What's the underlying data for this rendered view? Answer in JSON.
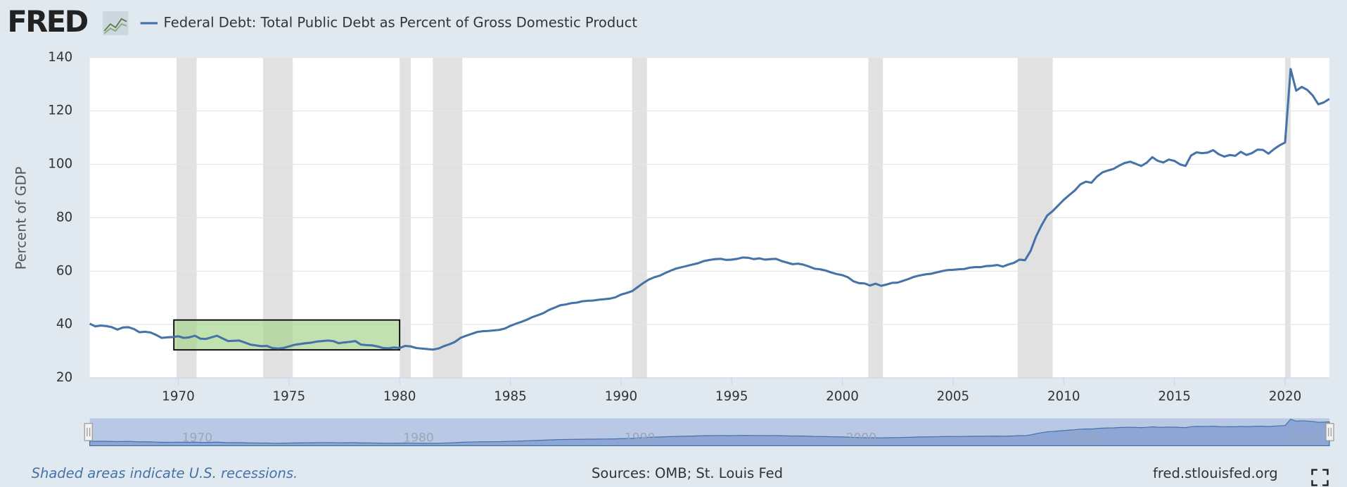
{
  "chart_data": {
    "type": "line",
    "logo": "FRED",
    "title": "Federal Debt: Total Public Debt as Percent of Gross Domestic Product",
    "y_label": "Percent of GDP",
    "note": "Shaded areas indicate U.S. recessions.",
    "source": "Sources: OMB; St. Louis Fed",
    "site": "fred.stlouisfed.org",
    "xlim": [
      1966,
      2022
    ],
    "xticks": [
      1970,
      1975,
      1980,
      1985,
      1990,
      1995,
      2000,
      2005,
      2010,
      2015,
      2020
    ],
    "ylim": [
      20,
      140
    ],
    "yticks": [
      20,
      40,
      60,
      80,
      100,
      120,
      140
    ],
    "grid": true,
    "recession_color": "#e1e1e1",
    "recessions": [
      [
        1969.92,
        1970.83
      ],
      [
        1973.83,
        1975.17
      ],
      [
        1980.0,
        1980.5
      ],
      [
        1981.5,
        1982.83
      ],
      [
        1990.5,
        1991.17
      ],
      [
        2001.17,
        2001.83
      ],
      [
        2007.92,
        2009.5
      ],
      [
        2020.0,
        2020.25
      ]
    ],
    "highlight": {
      "x": [
        1969.8,
        1980.0
      ],
      "y": [
        30.5,
        41.7
      ],
      "color": "#a8d48e"
    },
    "navigator_ticks": [
      1970,
      1980,
      1990,
      2000,
      2010,
      2020
    ],
    "series": [
      {
        "name": "Federal Debt: Total Public Debt as Percent of Gross Domestic Product",
        "color": "#4572a7",
        "x": [
          1966,
          1966.25,
          1966.5,
          1966.75,
          1967,
          1967.25,
          1967.5,
          1967.75,
          1968,
          1968.25,
          1968.5,
          1968.75,
          1969,
          1969.25,
          1969.5,
          1969.75,
          1970,
          1970.25,
          1970.5,
          1970.75,
          1971,
          1971.25,
          1971.5,
          1971.75,
          1972,
          1972.25,
          1972.5,
          1972.75,
          1973,
          1973.25,
          1973.5,
          1973.75,
          1974,
          1974.25,
          1974.5,
          1974.75,
          1975,
          1975.25,
          1975.5,
          1975.75,
          1976,
          1976.25,
          1976.5,
          1976.75,
          1977,
          1977.25,
          1977.5,
          1977.75,
          1978,
          1978.25,
          1978.5,
          1978.75,
          1979,
          1979.25,
          1979.5,
          1979.75,
          1980,
          1980.25,
          1980.5,
          1980.75,
          1981,
          1981.25,
          1981.5,
          1981.75,
          1982,
          1982.25,
          1982.5,
          1982.75,
          1983,
          1983.25,
          1983.5,
          1983.75,
          1984,
          1984.25,
          1984.5,
          1984.75,
          1985,
          1985.25,
          1985.5,
          1985.75,
          1986,
          1986.25,
          1986.5,
          1986.75,
          1987,
          1987.25,
          1987.5,
          1987.75,
          1988,
          1988.25,
          1988.5,
          1988.75,
          1989,
          1989.25,
          1989.5,
          1989.75,
          1990,
          1990.25,
          1990.5,
          1990.75,
          1991,
          1991.25,
          1991.5,
          1991.75,
          1992,
          1992.25,
          1992.5,
          1992.75,
          1993,
          1993.25,
          1993.5,
          1993.75,
          1994,
          1994.25,
          1994.5,
          1994.75,
          1995,
          1995.25,
          1995.5,
          1995.75,
          1996,
          1996.25,
          1996.5,
          1996.75,
          1997,
          1997.25,
          1997.5,
          1997.75,
          1998,
          1998.25,
          1998.5,
          1998.75,
          1999,
          1999.25,
          1999.5,
          1999.75,
          2000,
          2000.25,
          2000.5,
          2000.75,
          2001,
          2001.25,
          2001.5,
          2001.75,
          2002,
          2002.25,
          2002.5,
          2002.75,
          2003,
          2003.25,
          2003.5,
          2003.75,
          2004,
          2004.25,
          2004.5,
          2004.75,
          2005,
          2005.25,
          2005.5,
          2005.75,
          2006,
          2006.25,
          2006.5,
          2006.75,
          2007,
          2007.25,
          2007.5,
          2007.75,
          2008,
          2008.25,
          2008.5,
          2008.75,
          2009,
          2009.25,
          2009.5,
          2009.75,
          2010,
          2010.25,
          2010.5,
          2010.75,
          2011,
          2011.25,
          2011.5,
          2011.75,
          2012,
          2012.25,
          2012.5,
          2012.75,
          2013,
          2013.25,
          2013.5,
          2013.75,
          2014,
          2014.25,
          2014.5,
          2014.75,
          2015,
          2015.25,
          2015.5,
          2015.75,
          2016,
          2016.25,
          2016.5,
          2016.75,
          2017,
          2017.25,
          2017.5,
          2017.75,
          2018,
          2018.25,
          2018.5,
          2018.75,
          2019,
          2019.25,
          2019.5,
          2019.75,
          2020,
          2020.25,
          2020.5,
          2020.75,
          2021,
          2021.25,
          2021.5,
          2021.75,
          2022
        ],
        "values": [
          40.3,
          39.3,
          39.6,
          39.4,
          39.0,
          38.1,
          38.9,
          39.0,
          38.3,
          37.1,
          37.3,
          37.0,
          36.1,
          35.0,
          35.2,
          35.3,
          35.6,
          35.0,
          35.2,
          35.8,
          34.7,
          34.6,
          35.2,
          35.8,
          34.8,
          33.8,
          33.9,
          34.0,
          33.3,
          32.5,
          32.2,
          31.9,
          32.0,
          31.2,
          31.0,
          31.2,
          31.8,
          32.4,
          32.7,
          33.0,
          33.2,
          33.6,
          33.8,
          34.0,
          33.8,
          33.0,
          33.3,
          33.5,
          33.8,
          32.5,
          32.3,
          32.2,
          31.8,
          31.2,
          31.1,
          31.4,
          31.2,
          32.0,
          31.8,
          31.2,
          31.0,
          30.8,
          30.6,
          31.0,
          31.9,
          32.6,
          33.5,
          35.0,
          35.8,
          36.5,
          37.2,
          37.5,
          37.6,
          37.8,
          38.0,
          38.5,
          39.5,
          40.3,
          41.0,
          41.8,
          42.8,
          43.5,
          44.3,
          45.5,
          46.3,
          47.2,
          47.5,
          48.0,
          48.2,
          48.7,
          48.9,
          49.0,
          49.3,
          49.5,
          49.7,
          50.2,
          51.2,
          51.8,
          52.5,
          54.0,
          55.5,
          56.8,
          57.7,
          58.3,
          59.3,
          60.2,
          61.0,
          61.5,
          62.0,
          62.5,
          63.0,
          63.8,
          64.2,
          64.5,
          64.6,
          64.2,
          64.3,
          64.6,
          65.1,
          65.0,
          64.5,
          64.8,
          64.3,
          64.5,
          64.6,
          63.8,
          63.2,
          62.6,
          62.8,
          62.4,
          61.7,
          60.9,
          60.7,
          60.2,
          59.5,
          58.9,
          58.5,
          57.7,
          56.2,
          55.5,
          55.4,
          54.6,
          55.3,
          54.5,
          55.0,
          55.6,
          55.7,
          56.4,
          57.1,
          57.9,
          58.4,
          58.8,
          59.0,
          59.5,
          60.0,
          60.4,
          60.5,
          60.7,
          60.8,
          61.3,
          61.5,
          61.5,
          61.9,
          62.0,
          62.3,
          61.7,
          62.5,
          63.1,
          64.3,
          64.1,
          67.5,
          73.0,
          77.2,
          80.8,
          82.5,
          84.6,
          86.7,
          88.5,
          90.2,
          92.5,
          93.5,
          93.1,
          95.4,
          97.0,
          97.7,
          98.3,
          99.5,
          100.5,
          101.0,
          100.2,
          99.4,
          100.6,
          102.7,
          101.3,
          100.7,
          101.8,
          101.3,
          100.0,
          99.4,
          103.3,
          104.5,
          104.2,
          104.4,
          105.3,
          103.8,
          102.9,
          103.5,
          103.2,
          104.7,
          103.5,
          104.2,
          105.5,
          105.4,
          104.0,
          105.7,
          107.1,
          108.2,
          135.7,
          127.6,
          129.0,
          127.9,
          125.8,
          122.5,
          123.2,
          124.5
        ]
      }
    ]
  }
}
